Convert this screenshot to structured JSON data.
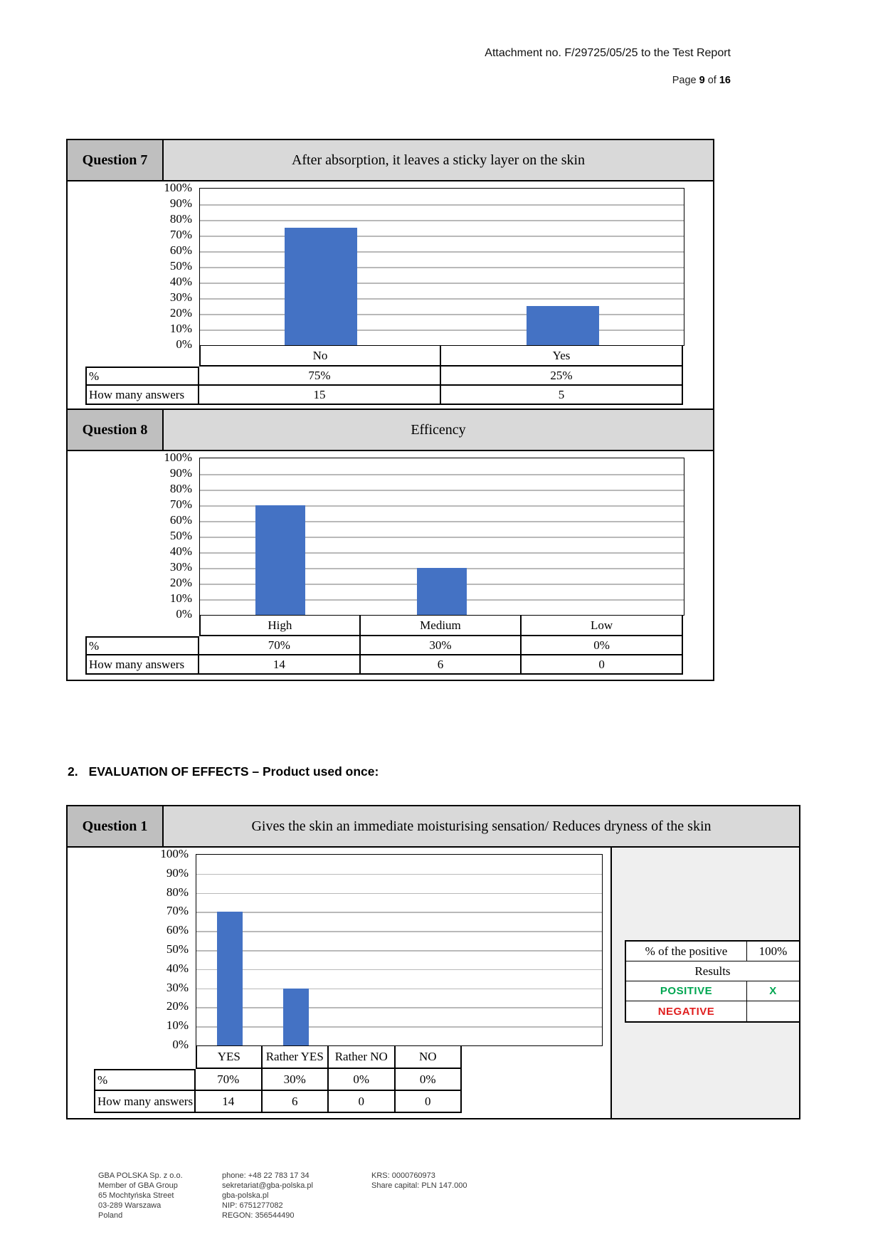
{
  "page": {
    "attachment_line": "Attachment no. F/29725/05/25 to the Test Report",
    "page_word": "Page ",
    "page_number": "9",
    "of_word": " of ",
    "page_total": "16"
  },
  "section": {
    "number": "2.",
    "title": "EVALUATION OF EFFECTS – Product used once:"
  },
  "labels": {
    "percent_row": "%",
    "answers_row": "How many answers"
  },
  "questions": [
    {
      "title": "Question 7",
      "description": "After absorption, it leaves a sticky layer on the skin",
      "categories": [
        "No",
        "Yes"
      ],
      "percents": [
        "75%",
        "25%"
      ],
      "answers": [
        "15",
        "5"
      ]
    },
    {
      "title": "Question 8",
      "description": "Efficency",
      "categories": [
        "High",
        "Medium",
        "Low"
      ],
      "percents": [
        "70%",
        "30%",
        "0%"
      ],
      "answers": [
        "14",
        "6",
        "0"
      ]
    },
    {
      "title": "Question 1",
      "description": "Gives the skin an immediate moisturising sensation/ Reduces dryness of the skin",
      "categories": [
        "YES",
        "Rather YES",
        "Rather NO",
        "NO"
      ],
      "percents": [
        "70%",
        "30%",
        "0%",
        "0%"
      ],
      "answers": [
        "14",
        "6",
        "0",
        "0"
      ]
    }
  ],
  "results_box": {
    "positive_percent_label": "% of the positive",
    "positive_percent_value": "100%",
    "results_header": "Results",
    "positive_label": "POSITIVE",
    "positive_mark": "X",
    "negative_label": "NEGATIVE",
    "negative_mark": "",
    "positive_color": "#00A651",
    "negative_color": "#E01E1E"
  },
  "chart_data": [
    {
      "type": "bar",
      "title": "After absorption, it leaves a sticky layer on the skin",
      "categories": [
        "No",
        "Yes"
      ],
      "values": [
        75,
        25
      ],
      "counts": [
        15,
        5
      ],
      "y_ticks": [
        "100%",
        "90%",
        "80%",
        "70%",
        "60%",
        "50%",
        "40%",
        "30%",
        "20%",
        "10%",
        "0%"
      ],
      "ylim": [
        0,
        100
      ],
      "grid": true,
      "legend": "none",
      "bar_color": "#4472C4"
    },
    {
      "type": "bar",
      "title": "Efficency",
      "categories": [
        "High",
        "Medium",
        "Low"
      ],
      "values": [
        70,
        30,
        0
      ],
      "counts": [
        14,
        6,
        0
      ],
      "y_ticks": [
        "100%",
        "90%",
        "80%",
        "70%",
        "60%",
        "50%",
        "40%",
        "30%",
        "20%",
        "10%",
        "0%"
      ],
      "ylim": [
        0,
        100
      ],
      "grid": true,
      "legend": "none",
      "bar_color": "#4472C4"
    },
    {
      "type": "bar",
      "title": "Gives the skin an immediate moisturising sensation/ Reduces dryness of the skin",
      "categories": [
        "YES",
        "Rather YES",
        "Rather NO",
        "NO"
      ],
      "values": [
        70,
        30,
        0,
        0
      ],
      "counts": [
        14,
        6,
        0,
        0
      ],
      "y_ticks": [
        "100%",
        "90%",
        "80%",
        "70%",
        "60%",
        "50%",
        "40%",
        "30%",
        "20%",
        "10%",
        "0%"
      ],
      "ylim": [
        0,
        100
      ],
      "grid": true,
      "legend": "none",
      "bar_color": "#4472C4"
    }
  ],
  "footer": {
    "column1": [
      "GBA POLSKA Sp. z o.o.",
      "Member of GBA Group",
      "65 Mochtyńska Street",
      "03-289 Warszawa",
      "Poland"
    ],
    "column2": [
      "phone: +48 22 783 17 34",
      "sekretariat@gba-polska.pl",
      "gba-polska.pl",
      "NIP: 6751277082",
      "REGON: 356544490"
    ],
    "column3": [
      "KRS: 0000760973",
      "Share capital: PLN 147.000"
    ]
  }
}
